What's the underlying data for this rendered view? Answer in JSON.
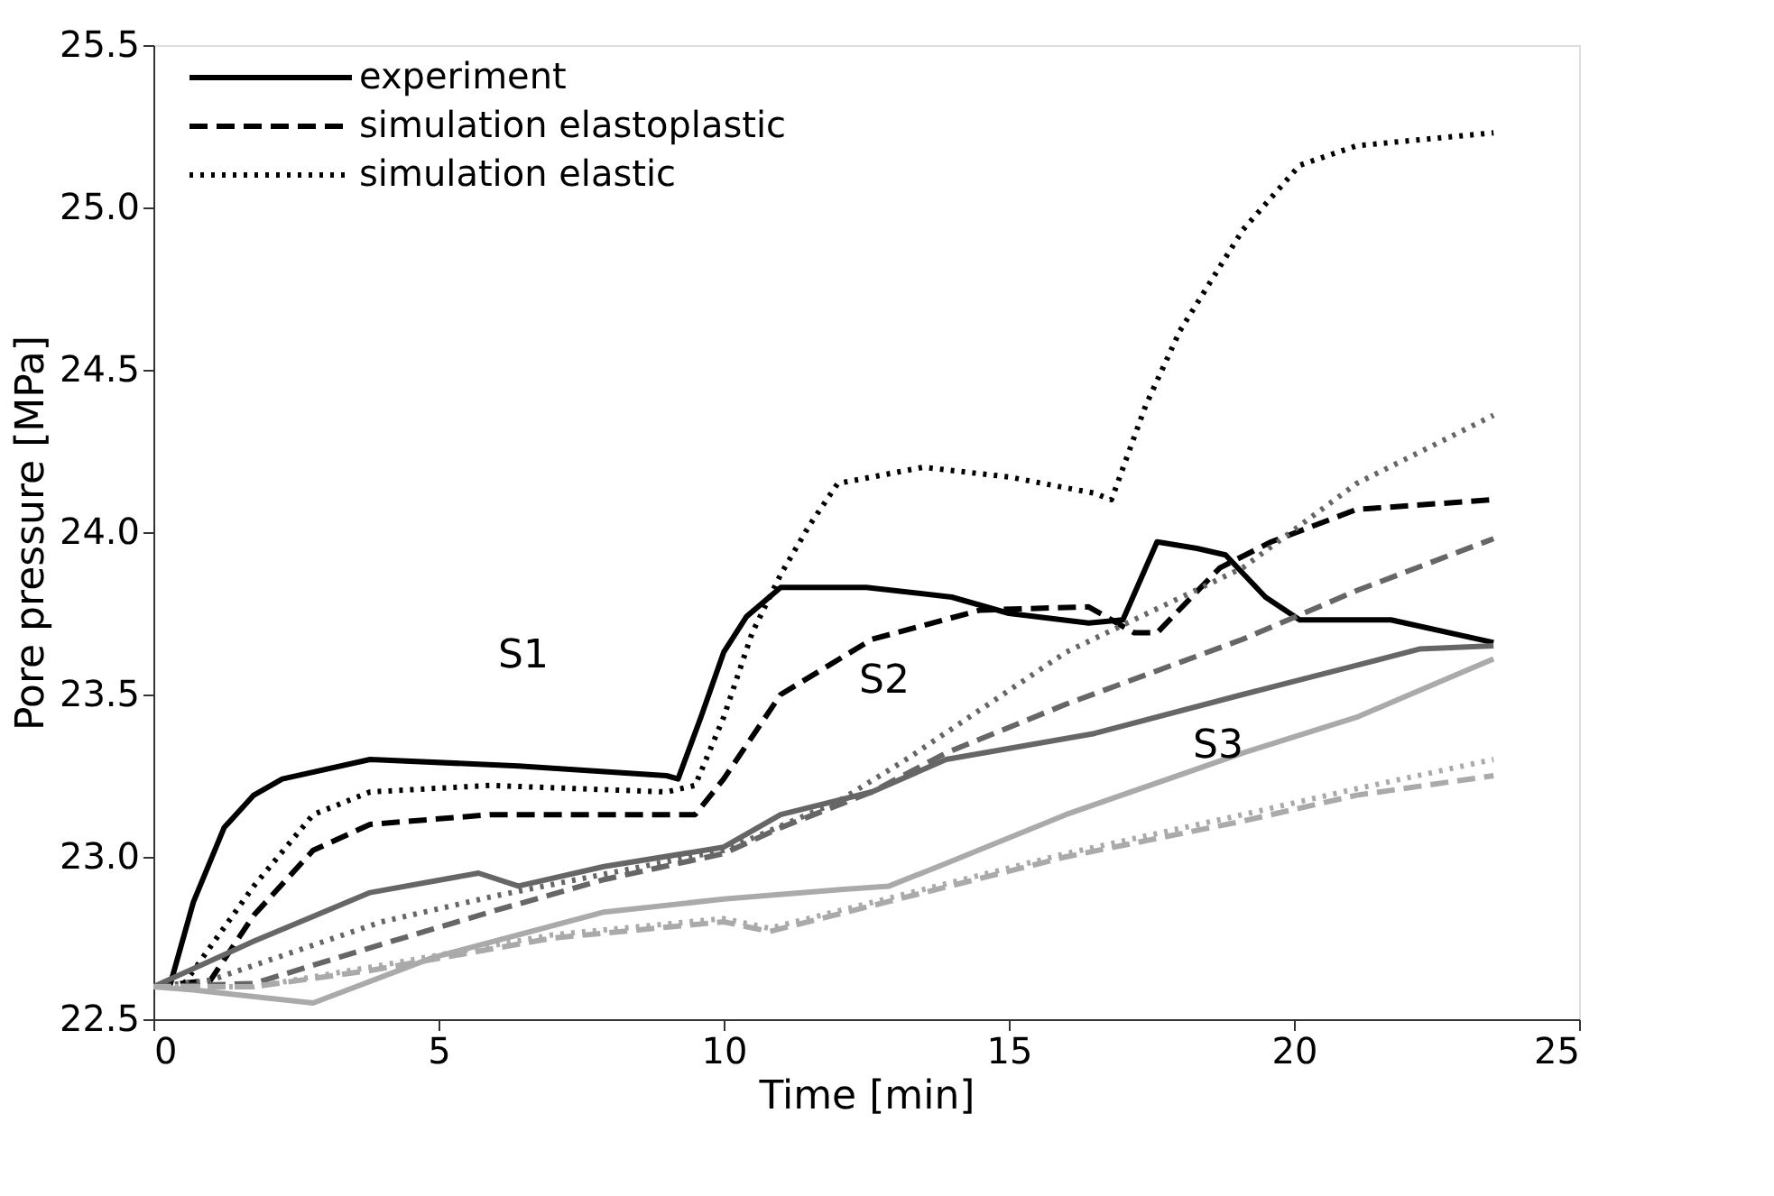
{
  "chart_data": {
    "type": "line",
    "xlabel": "Time [min]",
    "ylabel": "Pore pressure  [MPa]",
    "xlim": [
      0,
      25
    ],
    "xticks": [
      0,
      5,
      10,
      15,
      20,
      25
    ],
    "ylim": [
      22.5,
      25.5
    ],
    "yticks": [
      {
        "value": 22.5,
        "label": "22.5"
      },
      {
        "value": 23,
        "label": "23.0"
      },
      {
        "value": 23.5,
        "label": "23.5"
      },
      {
        "value": 24,
        "label": "24.0"
      },
      {
        "value": 24.5,
        "label": "24.5"
      },
      {
        "value": 25,
        "label": "25.0"
      },
      {
        "value": 25.5,
        "label": "25.5"
      }
    ],
    "grid": false,
    "legend": "top left",
    "marker": "none",
    "series": [
      {
        "name": "experiment",
        "color": "#000000",
        "line_style": "solid",
        "x": [
          0,
          0.3,
          0.7,
          1.24,
          1.76,
          2.26,
          3.8,
          6.4,
          9,
          9.2,
          9.6,
          10,
          10.4,
          11,
          12.5,
          14,
          15,
          16.4,
          17,
          17.6,
          18.3,
          18.8,
          19.5,
          20.1,
          21.7,
          23.5
        ],
        "values": [
          22.6,
          22.61,
          22.86,
          23.09,
          23.19,
          23.24,
          23.3,
          23.28,
          23.25,
          23.24,
          23.43,
          23.63,
          23.74,
          23.83,
          23.83,
          23.8,
          23.75,
          23.72,
          23.73,
          23.97,
          23.95,
          23.93,
          23.8,
          23.73,
          23.73,
          23.66
        ]
      },
      {
        "name": "simulation elastoplastic",
        "color": "#000000",
        "line_style": "dashed",
        "x": [
          0,
          1,
          1.76,
          2.8,
          3.8,
          5.9,
          9.5,
          10,
          11,
          12.6,
          14.5,
          16.4,
          17.2,
          17.6,
          18.7,
          19.6,
          21.1,
          23.5
        ],
        "values": [
          22.6,
          22.62,
          22.82,
          23.02,
          23.1,
          23.13,
          23.13,
          23.24,
          23.5,
          23.67,
          23.76,
          23.77,
          23.69,
          23.69,
          23.89,
          23.97,
          24.07,
          24.1
        ]
      },
      {
        "name": "simulation elastic",
        "color": "#000000",
        "line_style": "dotted",
        "x": [
          0,
          0.5,
          1.76,
          2.8,
          3.8,
          5.9,
          9,
          9.5,
          10,
          10.5,
          11,
          11.5,
          12,
          13.5,
          15,
          16.5,
          16.8,
          17.4,
          18,
          19.1,
          20.1,
          21.1,
          23.5
        ],
        "values": [
          22.6,
          22.6,
          22.91,
          23.13,
          23.2,
          23.22,
          23.2,
          23.22,
          23.43,
          23.69,
          23.87,
          24.02,
          24.15,
          24.2,
          24.17,
          24.12,
          24.1,
          24.39,
          24.62,
          24.93,
          25.13,
          25.19,
          25.23
        ]
      },
      {
        "color": "#666666",
        "line_style": "solid",
        "x": [
          0,
          1.76,
          3.8,
          5.7,
          6.4,
          7.9,
          10,
          11,
          12.6,
          13.9,
          16.5,
          19.1,
          21.1,
          22.2,
          23.5
        ],
        "values": [
          22.6,
          22.74,
          22.89,
          22.95,
          22.91,
          22.97,
          23.03,
          23.13,
          23.2,
          23.3,
          23.38,
          23.5,
          23.59,
          23.64,
          23.65
        ]
      },
      {
        "color": "#666666",
        "line_style": "dashed",
        "x": [
          0,
          1.76,
          3.8,
          5.9,
          7.9,
          10,
          11,
          12.6,
          13.9,
          16,
          19.1,
          21.1,
          23.5
        ],
        "values": [
          22.6,
          22.61,
          22.72,
          22.83,
          22.93,
          23.01,
          23.09,
          23.2,
          23.32,
          23.47,
          23.67,
          23.82,
          23.98
        ]
      },
      {
        "color": "#666666",
        "line_style": "dotted",
        "x": [
          0,
          1,
          2,
          4,
          6,
          8,
          10,
          12,
          13.2,
          16,
          19.1,
          21.1,
          23.5
        ],
        "values": [
          22.6,
          22.62,
          22.68,
          22.8,
          22.88,
          22.95,
          23.02,
          23.17,
          23.3,
          23.63,
          23.89,
          24.15,
          24.36
        ]
      },
      {
        "color": "#aaaaaa",
        "line_style": "solid",
        "x": [
          0,
          0.7,
          2.8,
          4.9,
          7.9,
          10,
          12.1,
          12.9,
          13.9,
          16,
          19.1,
          21.1,
          23.5
        ],
        "values": [
          22.6,
          22.59,
          22.55,
          22.69,
          22.83,
          22.87,
          22.9,
          22.91,
          22.98,
          23.13,
          23.32,
          23.43,
          23.61
        ]
      },
      {
        "color": "#aaaaaa",
        "line_style": "dashed",
        "x": [
          0,
          1.76,
          3.8,
          7,
          10,
          10.8,
          16,
          19.1,
          21.1,
          23.5
        ],
        "values": [
          22.6,
          22.6,
          22.65,
          22.75,
          22.8,
          22.77,
          23.0,
          23.11,
          23.19,
          23.25
        ]
      },
      {
        "color": "#aaaaaa",
        "line_style": "dotted",
        "x": [
          0,
          1.76,
          3.8,
          7,
          10,
          10.8,
          16,
          19.1,
          21.1,
          23.5
        ],
        "values": [
          22.6,
          22.6,
          22.66,
          22.76,
          22.81,
          22.78,
          23.01,
          23.13,
          23.21,
          23.3
        ]
      }
    ],
    "annotations": [
      "S1",
      "S2",
      "S3"
    ]
  }
}
